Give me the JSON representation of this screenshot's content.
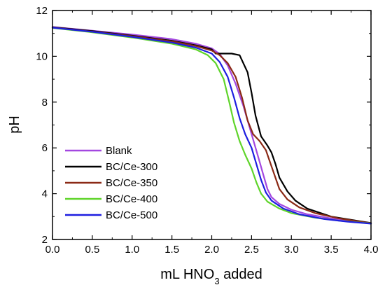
{
  "chart_data": {
    "type": "line",
    "xlabel_parts": [
      "mL HNO",
      "3",
      " added"
    ],
    "ylabel": "pH",
    "xlim": [
      0,
      4
    ],
    "ylim": [
      2,
      12
    ],
    "xticks": [
      "0.0",
      "0.5",
      "1.0",
      "1.5",
      "2.0",
      "2.5",
      "3.0",
      "3.5",
      "4.0"
    ],
    "yticks": [
      "2",
      "4",
      "6",
      "8",
      "10",
      "12"
    ],
    "grid": false,
    "legend_position": "bottom-left",
    "series": [
      {
        "name": "Blank",
        "color": "#a347e0",
        "points": [
          [
            0,
            11.28
          ],
          [
            0.5,
            11.12
          ],
          [
            1.0,
            10.95
          ],
          [
            1.5,
            10.75
          ],
          [
            1.8,
            10.55
          ],
          [
            2.0,
            10.35
          ],
          [
            2.1,
            10.1
          ],
          [
            2.2,
            9.6
          ],
          [
            2.3,
            8.8
          ],
          [
            2.4,
            7.8
          ],
          [
            2.5,
            6.6
          ],
          [
            2.6,
            5.4
          ],
          [
            2.65,
            4.8
          ],
          [
            2.7,
            4.2
          ],
          [
            2.75,
            3.85
          ],
          [
            2.85,
            3.55
          ],
          [
            3.0,
            3.3
          ],
          [
            3.2,
            3.1
          ],
          [
            3.5,
            2.92
          ],
          [
            4.0,
            2.7
          ]
        ]
      },
      {
        "name": "BC/Ce-300",
        "color": "#000000",
        "points": [
          [
            0,
            11.27
          ],
          [
            0.5,
            11.1
          ],
          [
            1.0,
            10.9
          ],
          [
            1.5,
            10.68
          ],
          [
            1.8,
            10.48
          ],
          [
            2.0,
            10.3
          ],
          [
            2.05,
            10.12
          ],
          [
            2.25,
            10.12
          ],
          [
            2.35,
            10.05
          ],
          [
            2.45,
            9.3
          ],
          [
            2.5,
            8.4
          ],
          [
            2.55,
            7.4
          ],
          [
            2.62,
            6.5
          ],
          [
            2.7,
            6.1
          ],
          [
            2.75,
            5.8
          ],
          [
            2.8,
            5.3
          ],
          [
            2.85,
            4.7
          ],
          [
            2.95,
            4.1
          ],
          [
            3.05,
            3.7
          ],
          [
            3.2,
            3.35
          ],
          [
            3.5,
            3.0
          ],
          [
            4.0,
            2.72
          ]
        ]
      },
      {
        "name": "BC/Ce-350",
        "color": "#8b2a16",
        "points": [
          [
            0,
            11.26
          ],
          [
            0.5,
            11.08
          ],
          [
            1.0,
            10.88
          ],
          [
            1.5,
            10.65
          ],
          [
            1.8,
            10.45
          ],
          [
            2.0,
            10.25
          ],
          [
            2.1,
            10.05
          ],
          [
            2.2,
            9.7
          ],
          [
            2.3,
            9.1
          ],
          [
            2.38,
            8.2
          ],
          [
            2.45,
            7.2
          ],
          [
            2.52,
            6.6
          ],
          [
            2.6,
            6.3
          ],
          [
            2.68,
            5.9
          ],
          [
            2.72,
            5.5
          ],
          [
            2.78,
            4.9
          ],
          [
            2.85,
            4.2
          ],
          [
            2.95,
            3.75
          ],
          [
            3.1,
            3.4
          ],
          [
            3.3,
            3.15
          ],
          [
            3.6,
            2.92
          ],
          [
            4.0,
            2.71
          ]
        ]
      },
      {
        "name": "BC/Ce-400",
        "color": "#5fd42a",
        "points": [
          [
            0,
            11.24
          ],
          [
            0.5,
            11.05
          ],
          [
            1.0,
            10.82
          ],
          [
            1.5,
            10.55
          ],
          [
            1.8,
            10.3
          ],
          [
            1.95,
            10.05
          ],
          [
            2.05,
            9.7
          ],
          [
            2.15,
            9.0
          ],
          [
            2.22,
            8.0
          ],
          [
            2.28,
            7.1
          ],
          [
            2.35,
            6.3
          ],
          [
            2.42,
            5.7
          ],
          [
            2.5,
            5.1
          ],
          [
            2.56,
            4.5
          ],
          [
            2.62,
            4.0
          ],
          [
            2.7,
            3.65
          ],
          [
            2.85,
            3.35
          ],
          [
            3.0,
            3.15
          ],
          [
            3.3,
            2.95
          ],
          [
            3.6,
            2.82
          ],
          [
            4.0,
            2.7
          ]
        ]
      },
      {
        "name": "BC/Ce-500",
        "color": "#1e1ee0",
        "points": [
          [
            0,
            11.25
          ],
          [
            0.5,
            11.07
          ],
          [
            1.0,
            10.85
          ],
          [
            1.5,
            10.6
          ],
          [
            1.8,
            10.38
          ],
          [
            2.0,
            10.12
          ],
          [
            2.1,
            9.75
          ],
          [
            2.2,
            9.1
          ],
          [
            2.28,
            8.2
          ],
          [
            2.35,
            7.3
          ],
          [
            2.42,
            6.6
          ],
          [
            2.5,
            6.0
          ],
          [
            2.56,
            5.3
          ],
          [
            2.62,
            4.6
          ],
          [
            2.68,
            4.05
          ],
          [
            2.75,
            3.7
          ],
          [
            2.9,
            3.35
          ],
          [
            3.1,
            3.1
          ],
          [
            3.4,
            2.9
          ],
          [
            3.7,
            2.78
          ],
          [
            4.0,
            2.69
          ]
        ]
      }
    ]
  }
}
